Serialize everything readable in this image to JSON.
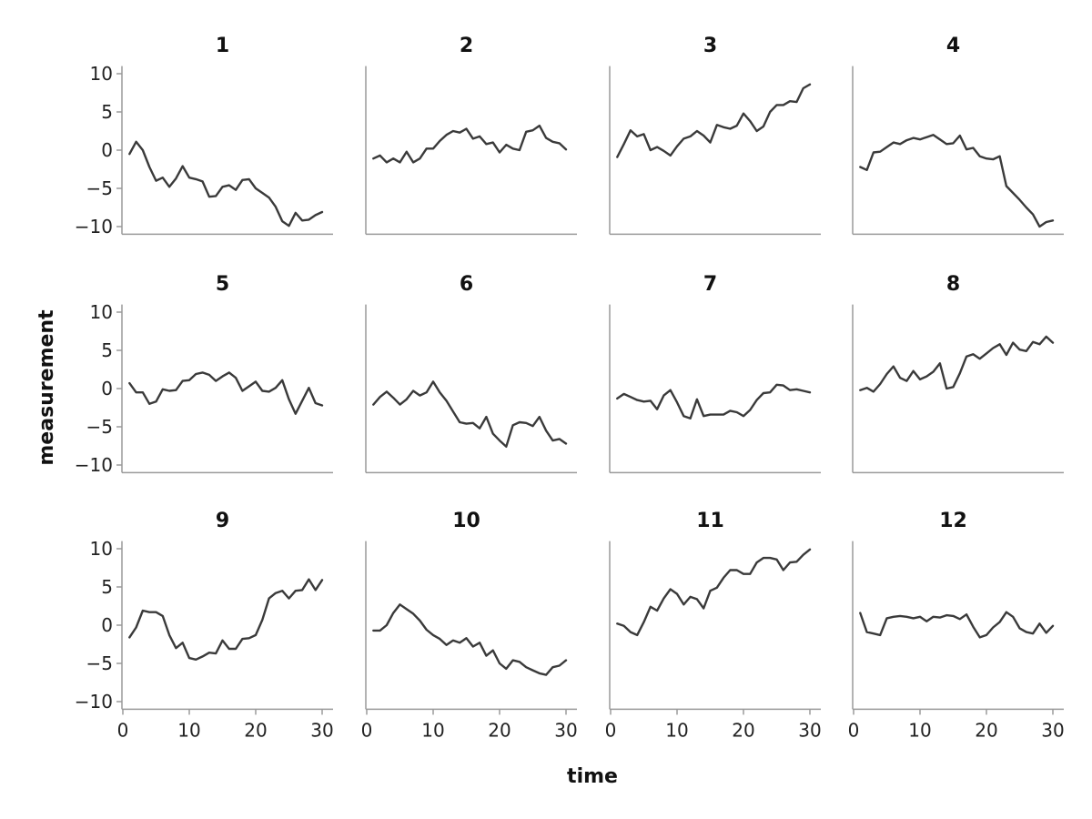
{
  "chart_data": {
    "type": "line",
    "layout": "small-multiples-grid",
    "rows": 3,
    "cols": 4,
    "xlabel": "time",
    "ylabel": "measurement",
    "xlim": [
      0,
      30
    ],
    "ylim": [
      -10,
      10
    ],
    "xticks": [
      0,
      10,
      20,
      30
    ],
    "yticks": [
      10,
      5,
      0,
      -5,
      -10
    ],
    "x": [
      1,
      2,
      3,
      4,
      5,
      6,
      7,
      8,
      9,
      10,
      11,
      12,
      13,
      14,
      15,
      16,
      17,
      18,
      19,
      20,
      21,
      22,
      23,
      24,
      25,
      26,
      27,
      28,
      29,
      30
    ],
    "line_color": "#3a3a3a",
    "axis_color": "#9a9a9a",
    "grid": false,
    "panels": [
      {
        "title": "1",
        "values": [
          -0.5,
          1.1,
          0.0,
          -2.2,
          -4.0,
          -3.6,
          -4.8,
          -3.7,
          -2.1,
          -3.6,
          -3.8,
          -4.1,
          -6.1,
          -6.0,
          -4.8,
          -4.6,
          -5.2,
          -3.9,
          -3.8,
          -5.0,
          -5.6,
          -6.2,
          -7.4,
          -9.3,
          -9.9,
          -8.2,
          -9.2,
          -9.1,
          -8.5,
          -8.1
        ]
      },
      {
        "title": "2",
        "values": [
          -1.1,
          -0.7,
          -1.6,
          -1.1,
          -1.6,
          -0.2,
          -1.6,
          -1.1,
          0.2,
          0.2,
          1.2,
          2.0,
          2.5,
          2.3,
          2.8,
          1.5,
          1.8,
          0.8,
          1.0,
          -0.3,
          0.7,
          0.2,
          0.0,
          2.4,
          2.6,
          3.2,
          1.6,
          1.1,
          0.9,
          0.1
        ]
      },
      {
        "title": "3",
        "values": [
          -0.9,
          0.8,
          2.6,
          1.8,
          2.1,
          0.0,
          0.4,
          -0.1,
          -0.7,
          0.5,
          1.5,
          1.8,
          2.5,
          1.9,
          1.0,
          3.3,
          3.0,
          2.8,
          3.2,
          4.8,
          3.8,
          2.5,
          3.1,
          5.0,
          5.9,
          5.9,
          6.4,
          6.3,
          8.1,
          8.6
        ]
      },
      {
        "title": "4",
        "values": [
          -2.2,
          -2.6,
          -0.3,
          -0.2,
          0.4,
          1.0,
          0.8,
          1.3,
          1.6,
          1.4,
          1.7,
          2.0,
          1.4,
          0.8,
          0.9,
          1.9,
          0.1,
          0.3,
          -0.8,
          -1.1,
          -1.2,
          -0.8,
          -4.7,
          -5.6,
          -6.5,
          -7.5,
          -8.4,
          -10.0,
          -9.4,
          -9.2
        ]
      },
      {
        "title": "5",
        "values": [
          0.7,
          -0.5,
          -0.5,
          -2.0,
          -1.7,
          -0.1,
          -0.3,
          -0.2,
          1.0,
          1.1,
          1.9,
          2.1,
          1.8,
          1.0,
          1.6,
          2.1,
          1.4,
          -0.3,
          0.3,
          0.9,
          -0.3,
          -0.4,
          0.1,
          1.1,
          -1.4,
          -3.3,
          -1.6,
          0.1,
          -1.9,
          -2.2
        ]
      },
      {
        "title": "6",
        "values": [
          -2.1,
          -1.1,
          -0.4,
          -1.2,
          -2.1,
          -1.4,
          -0.3,
          -0.9,
          -0.5,
          0.9,
          -0.5,
          -1.6,
          -3.0,
          -4.4,
          -4.6,
          -4.5,
          -5.2,
          -3.7,
          -5.9,
          -6.8,
          -7.6,
          -4.8,
          -4.4,
          -4.5,
          -4.9,
          -3.7,
          -5.5,
          -6.8,
          -6.6,
          -7.2
        ]
      },
      {
        "title": "7",
        "values": [
          -1.3,
          -0.7,
          -1.1,
          -1.5,
          -1.7,
          -1.6,
          -2.7,
          -0.9,
          -0.2,
          -1.8,
          -3.6,
          -3.9,
          -1.4,
          -3.6,
          -3.4,
          -3.4,
          -3.4,
          -2.9,
          -3.1,
          -3.6,
          -2.8,
          -1.5,
          -0.6,
          -0.5,
          0.5,
          0.4,
          -0.2,
          -0.1,
          -0.3,
          -0.5
        ]
      },
      {
        "title": "8",
        "values": [
          -0.2,
          0.1,
          -0.4,
          0.6,
          1.9,
          2.9,
          1.4,
          1.0,
          2.3,
          1.2,
          1.6,
          2.2,
          3.3,
          0.0,
          0.2,
          2.0,
          4.2,
          4.5,
          3.9,
          4.6,
          5.3,
          5.8,
          4.4,
          6.0,
          5.1,
          4.9,
          6.1,
          5.8,
          6.8,
          6.0
        ]
      },
      {
        "title": "9",
        "values": [
          -1.6,
          -0.3,
          1.9,
          1.7,
          1.7,
          1.2,
          -1.3,
          -3.0,
          -2.3,
          -4.3,
          -4.5,
          -4.1,
          -3.6,
          -3.7,
          -2.0,
          -3.1,
          -3.1,
          -1.8,
          -1.7,
          -1.3,
          0.7,
          3.5,
          4.2,
          4.5,
          3.5,
          4.5,
          4.6,
          6.0,
          4.6,
          5.9
        ]
      },
      {
        "title": "10",
        "values": [
          -0.7,
          -0.7,
          0.0,
          1.6,
          2.7,
          2.1,
          1.5,
          0.6,
          -0.6,
          -1.3,
          -1.8,
          -2.6,
          -2.0,
          -2.3,
          -1.7,
          -2.8,
          -2.3,
          -4.0,
          -3.3,
          -5.0,
          -5.7,
          -4.6,
          -4.8,
          -5.5,
          -5.9,
          -6.3,
          -6.5,
          -5.5,
          -5.3,
          -4.6
        ]
      },
      {
        "title": "11",
        "values": [
          0.2,
          -0.1,
          -0.9,
          -1.3,
          0.4,
          2.4,
          1.9,
          3.5,
          4.7,
          4.1,
          2.7,
          3.7,
          3.4,
          2.2,
          4.5,
          4.9,
          6.2,
          7.2,
          7.2,
          6.7,
          6.7,
          8.2,
          8.8,
          8.8,
          8.6,
          7.2,
          8.2,
          8.3,
          9.2,
          9.9
        ]
      },
      {
        "title": "12",
        "values": [
          1.6,
          -0.9,
          -1.1,
          -1.3,
          0.9,
          1.1,
          1.2,
          1.1,
          0.9,
          1.1,
          0.5,
          1.1,
          1.0,
          1.3,
          1.2,
          0.8,
          1.4,
          -0.2,
          -1.6,
          -1.3,
          -0.3,
          0.4,
          1.7,
          1.1,
          -0.4,
          -0.9,
          -1.1,
          0.2,
          -1.0,
          -0.1
        ]
      }
    ]
  }
}
